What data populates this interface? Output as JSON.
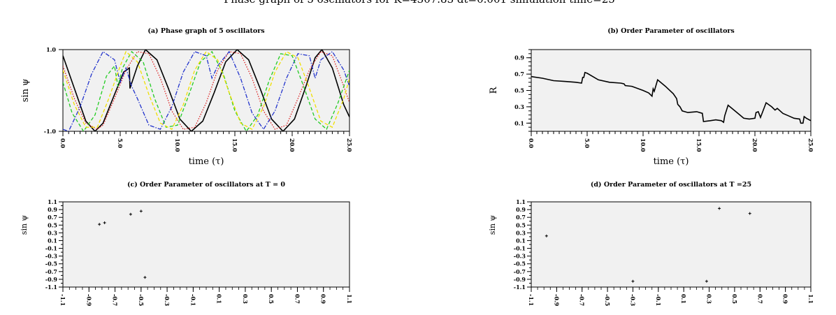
{
  "figure": {
    "suptitle": "Phase graph of 5 oscillators for K=4307.83 dt=0.001 simulation time=25"
  },
  "chart_data": [
    {
      "id": "a",
      "type": "line",
      "title": "(a) Phase graph of 5 oscillators",
      "xlabel": "time (τ)",
      "ylabel": "sin ψ",
      "xlim": [
        0,
        25
      ],
      "ylim": [
        -1.0,
        1.0
      ],
      "xticks": [
        "0.0",
        "5.0",
        "10.0",
        "15.0",
        "20.0",
        "25.0"
      ],
      "yticks": [
        "1.0",
        "-1.0"
      ],
      "background": "#f1f1f1",
      "series": [
        {
          "color": "#000000",
          "style": "solid",
          "x": [
            0,
            1,
            2,
            2.8,
            3.5,
            4.5,
            5.3,
            5.8,
            5.85,
            6.5,
            7.2,
            8.2,
            9.2,
            10.2,
            11.2,
            12.2,
            13.2,
            14.2,
            15.2,
            16.2,
            17.2,
            18.2,
            19.2,
            20.2,
            21.2,
            22.0,
            22.6,
            23.5,
            24.5,
            25.0
          ],
          "y": [
            0.85,
            0.05,
            -0.75,
            -1.0,
            -0.8,
            -0.1,
            0.45,
            0.55,
            0.05,
            0.6,
            1.0,
            0.75,
            0.05,
            -0.7,
            -1.0,
            -0.75,
            -0.05,
            0.7,
            1.0,
            0.75,
            0.05,
            -0.7,
            -1.0,
            -0.7,
            0.1,
            0.8,
            1.0,
            0.55,
            -0.35,
            -0.65
          ]
        },
        {
          "color": "#dd2222",
          "style": "dotted",
          "x": [
            0,
            1,
            2,
            3,
            3.5,
            4.5,
            5.5,
            6.5,
            7.5,
            8.5,
            9.5,
            10.5,
            11.5,
            12.5,
            13.5,
            14.5,
            15.5,
            16.5,
            17.5,
            18.5,
            19.5,
            20.5,
            21.5,
            22.5,
            23.5,
            24.5,
            25.0
          ],
          "y": [
            0.6,
            -0.2,
            -0.8,
            -0.95,
            -0.85,
            -0.2,
            0.5,
            0.95,
            0.9,
            0.3,
            -0.5,
            -0.95,
            -0.9,
            -0.3,
            0.5,
            0.95,
            0.9,
            0.3,
            -0.5,
            -0.95,
            -0.85,
            -0.2,
            0.5,
            0.95,
            0.85,
            0.1,
            -0.3
          ]
        },
        {
          "color": "#2233cc",
          "style": "dashdot",
          "x": [
            0,
            0.5,
            1.5,
            2.5,
            3.5,
            4.5,
            5.0,
            5.5,
            6.0,
            6.5,
            7.5,
            8.5,
            9.5,
            10.5,
            11.5,
            12.5,
            13.0,
            13.5,
            14.5,
            15.5,
            16.5,
            17.5,
            18.5,
            19.5,
            20.5,
            21.5,
            22.0,
            22.5,
            23.5,
            24.5,
            25.0
          ],
          "y": [
            -0.95,
            -1.0,
            -0.4,
            0.4,
            0.95,
            0.75,
            0.2,
            0.55,
            0.1,
            -0.2,
            -0.85,
            -0.95,
            -0.4,
            0.45,
            0.95,
            0.85,
            0.3,
            0.6,
            0.95,
            0.3,
            -0.55,
            -0.95,
            -0.5,
            0.3,
            0.9,
            0.85,
            0.3,
            0.75,
            0.95,
            0.5,
            0.1
          ]
        },
        {
          "color": "#22cc22",
          "style": "dashed",
          "x": [
            0,
            0.8,
            1.8,
            2.8,
            3.8,
            4.5,
            4.8,
            5.2,
            6.0,
            7.0,
            8.0,
            9.0,
            10.0,
            11.0,
            12.0,
            13.0,
            14.0,
            15.0,
            16.0,
            17.0,
            18.0,
            19.0,
            20.0,
            21.0,
            22.0,
            23.0,
            24.0,
            25.0
          ],
          "y": [
            0.2,
            -0.55,
            -1.0,
            -0.6,
            0.35,
            0.6,
            0.1,
            0.55,
            0.95,
            0.7,
            -0.2,
            -0.9,
            -0.85,
            -0.1,
            0.7,
            0.95,
            0.4,
            -0.5,
            -1.0,
            -0.6,
            0.25,
            0.9,
            0.85,
            0.1,
            -0.7,
            -0.95,
            -0.3,
            0.5
          ]
        },
        {
          "color": "#f0e000",
          "style": "dashed",
          "x": [
            0,
            1,
            2,
            3,
            4,
            4.5,
            5.0,
            5.5,
            6.5,
            7.5,
            8.5,
            9.5,
            10.5,
            11.5,
            12.5,
            13.5,
            14.5,
            15.5,
            16.5,
            17.5,
            18.5,
            19.5,
            20.5,
            21.5,
            22.5,
            23.5,
            24.5,
            25.0
          ],
          "y": [
            0.5,
            -0.35,
            -0.9,
            -0.9,
            -0.2,
            0.2,
            0.6,
            0.95,
            0.7,
            -0.1,
            -0.8,
            -0.95,
            -0.35,
            0.5,
            0.95,
            0.75,
            -0.05,
            -0.8,
            -0.95,
            -0.4,
            0.45,
            0.95,
            0.8,
            0.05,
            -0.75,
            -0.9,
            -0.2,
            0.3
          ]
        }
      ]
    },
    {
      "id": "b",
      "type": "line",
      "title": "(b) Order Parameter of oscillators",
      "xlabel": "time (τ)",
      "ylabel": "R",
      "xlim": [
        0,
        25
      ],
      "ylim": [
        0.0,
        1.0
      ],
      "xticks": [
        "0.0",
        "5.0",
        "10.0",
        "15.0",
        "20.0",
        "25.0"
      ],
      "yticks": [
        "0.9",
        "0.7",
        "0.5",
        "0.3",
        "0.1"
      ],
      "ytick_values": [
        0.9,
        0.7,
        0.5,
        0.3,
        0.1
      ],
      "background": "#f1f1f1",
      "series": [
        {
          "color": "#000000",
          "x": [
            0,
            1,
            2,
            3,
            4,
            4.5,
            4.6,
            4.7,
            4.8,
            5.0,
            5.5,
            6.0,
            7.0,
            8.0,
            8.3,
            8.4,
            9.0,
            10.0,
            10.5,
            10.8,
            10.9,
            11.0,
            11.3,
            12.0,
            12.7,
            13.0,
            13.1,
            13.3,
            13.5,
            14.0,
            14.8,
            15.3,
            15.4,
            16.0,
            16.5,
            17.0,
            17.2,
            17.3,
            17.6,
            18.3,
            19.0,
            19.5,
            20.0,
            20.1,
            20.3,
            20.5,
            21.0,
            21.5,
            21.8,
            22.0,
            22.5,
            23.0,
            23.5,
            24.0,
            24.1,
            24.3,
            24.4,
            24.6,
            25.0
          ],
          "y": [
            0.67,
            0.65,
            0.62,
            0.61,
            0.6,
            0.59,
            0.66,
            0.66,
            0.72,
            0.71,
            0.67,
            0.63,
            0.6,
            0.59,
            0.58,
            0.56,
            0.55,
            0.5,
            0.47,
            0.43,
            0.52,
            0.49,
            0.63,
            0.55,
            0.46,
            0.4,
            0.33,
            0.3,
            0.25,
            0.23,
            0.24,
            0.22,
            0.12,
            0.13,
            0.14,
            0.13,
            0.11,
            0.19,
            0.32,
            0.24,
            0.16,
            0.15,
            0.16,
            0.23,
            0.24,
            0.17,
            0.35,
            0.3,
            0.26,
            0.28,
            0.22,
            0.19,
            0.16,
            0.15,
            0.1,
            0.1,
            0.18,
            0.16,
            0.13
          ]
        }
      ]
    },
    {
      "id": "c",
      "type": "scatter",
      "title": "(c) Order Parameter of oscillators at T = 0",
      "ylabel": "sin ψ",
      "xlim": [
        -1.1,
        1.1
      ],
      "ylim": [
        -1.1,
        1.1
      ],
      "ticks": [
        "-1.1",
        "-0.9",
        "-0.7",
        "-0.5",
        "-0.3",
        "-0.1",
        "0.1",
        "0.3",
        "0.5",
        "0.7",
        "0.9",
        "1.1"
      ],
      "tick_values": [
        -1.1,
        -0.9,
        -0.7,
        -0.5,
        -0.3,
        -0.1,
        0.1,
        0.3,
        0.5,
        0.7,
        0.9,
        1.1
      ],
      "background": "#f1f1f1",
      "points": {
        "x": [
          -0.82,
          -0.78,
          -0.58,
          -0.5,
          -0.47
        ],
        "y": [
          0.52,
          0.56,
          0.78,
          0.86,
          -0.85
        ]
      }
    },
    {
      "id": "d",
      "type": "scatter",
      "title": "(d) Order Parameter of oscillators at T =25",
      "ylabel": "sin ψ",
      "xlim": [
        -1.1,
        1.1
      ],
      "ylim": [
        -1.1,
        1.1
      ],
      "ticks": [
        "-1.1",
        "-0.9",
        "-0.7",
        "-0.5",
        "-0.3",
        "-0.1",
        "0.1",
        "0.3",
        "0.5",
        "0.7",
        "0.9",
        "1.1"
      ],
      "tick_values": [
        -1.1,
        -0.9,
        -0.7,
        -0.5,
        -0.3,
        -0.1,
        0.1,
        0.3,
        0.5,
        0.7,
        0.9,
        1.1
      ],
      "background": "#f1f1f1",
      "points": {
        "x": [
          -0.98,
          -0.3,
          0.28,
          0.38,
          0.62
        ],
        "y": [
          0.22,
          -0.95,
          -0.95,
          0.93,
          0.8
        ]
      }
    }
  ]
}
